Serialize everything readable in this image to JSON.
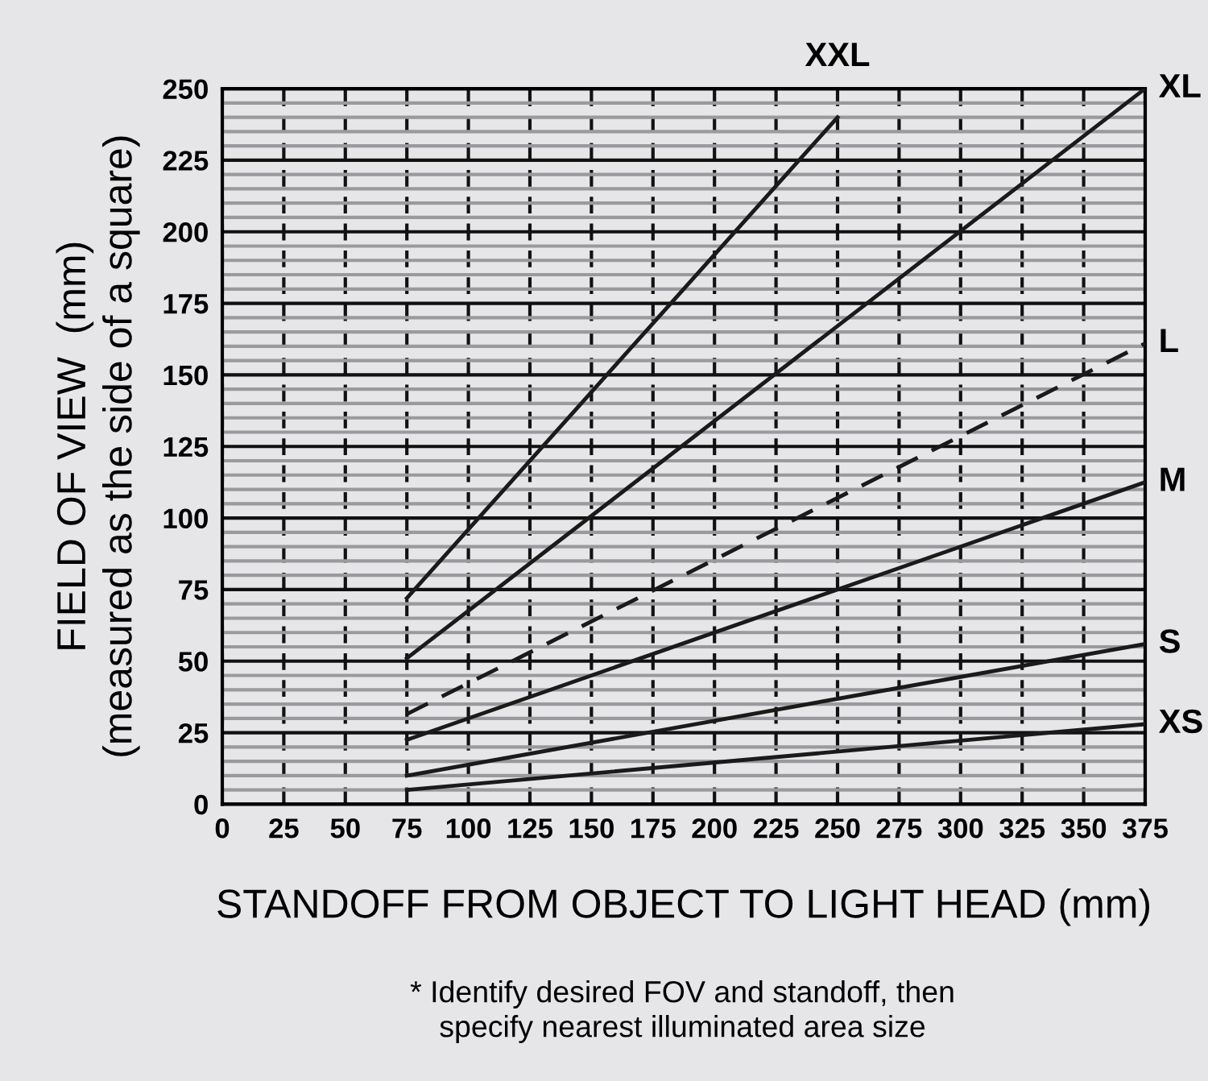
{
  "chart_data": {
    "type": "line",
    "xlabel": "STANDOFF FROM OBJECT TO LIGHT HEAD (mm)",
    "ylabel": "FIELD OF VIEW  (mm)\n(measured as the side of a square)",
    "annotations": [
      "* Identify desired FOV and standoff, then\nspecify nearest illuminated area size"
    ],
    "series": [
      {
        "name": "XXL",
        "color": "#1a1a1a",
        "x": [
          75,
          250
        ],
        "values": [
          72,
          240
        ]
      },
      {
        "name": "XL",
        "color": "#1a1a1a",
        "x": [
          75,
          375
        ],
        "values": [
          51,
          250
        ]
      },
      {
        "name": "L",
        "color": "#1a1a1a",
        "x": [
          75,
          375
        ],
        "values": [
          31.5,
          161
        ],
        "line_style": "dashed"
      },
      {
        "name": "M",
        "color": "#1a1a1a",
        "x": [
          75,
          375
        ],
        "values": [
          22.5,
          112.5
        ]
      },
      {
        "name": "S",
        "color": "#1a1a1a",
        "x": [
          75,
          375
        ],
        "values": [
          10,
          56
        ]
      },
      {
        "name": "XS",
        "color": "#1a1a1a",
        "x": [
          75,
          375
        ],
        "values": [
          5,
          28
        ]
      }
    ],
    "xlim": [
      0,
      375
    ],
    "xticks": [
      0,
      25,
      50,
      75,
      100,
      125,
      150,
      175,
      200,
      225,
      250,
      275,
      300,
      325,
      350,
      375
    ],
    "ylim": [
      0,
      250
    ],
    "yticks": [
      0,
      {
        "value": 5,
        "label": null
      },
      {
        "value": 10,
        "label": null
      },
      {
        "value": 15,
        "label": null
      },
      {
        "value": 20,
        "label": null
      },
      25,
      {
        "value": 30,
        "label": null
      },
      {
        "value": 35,
        "label": null
      },
      {
        "value": 40,
        "label": null
      },
      {
        "value": 45,
        "label": null
      },
      50,
      {
        "value": 55,
        "label": null
      },
      {
        "value": 60,
        "label": null
      },
      {
        "value": 65,
        "label": null
      },
      {
        "value": 70,
        "label": null
      },
      75,
      {
        "value": 80,
        "label": null
      },
      {
        "value": 85,
        "label": null
      },
      {
        "value": 90,
        "label": null
      },
      {
        "value": 95,
        "label": null
      },
      100,
      {
        "value": 105,
        "label": null
      },
      {
        "value": 110,
        "label": null
      },
      {
        "value": 115,
        "label": null
      },
      {
        "value": 120,
        "label": null
      },
      125,
      {
        "value": 130,
        "label": null
      },
      {
        "value": 135,
        "label": null
      },
      {
        "value": 140,
        "label": null
      },
      {
        "value": 145,
        "label": null
      },
      150,
      {
        "value": 155,
        "label": null
      },
      {
        "value": 160,
        "label": null
      },
      {
        "value": 165,
        "label": null
      },
      {
        "value": 170,
        "label": null
      },
      175,
      {
        "value": 180,
        "label": null
      },
      {
        "value": 185,
        "label": null
      },
      {
        "value": 190,
        "label": null
      },
      {
        "value": 195,
        "label": null
      },
      200,
      {
        "value": 205,
        "label": null
      },
      {
        "value": 210,
        "label": null
      },
      {
        "value": 215,
        "label": null
      },
      {
        "value": 220,
        "label": null
      },
      225,
      {
        "value": 230,
        "label": null
      },
      {
        "value": 235,
        "label": null
      },
      {
        "value": 240,
        "label": null
      },
      {
        "value": 245,
        "label": null
      },
      250
    ],
    "grid": true,
    "line_style": "solid",
    "marker": "none",
    "legend": false
  }
}
